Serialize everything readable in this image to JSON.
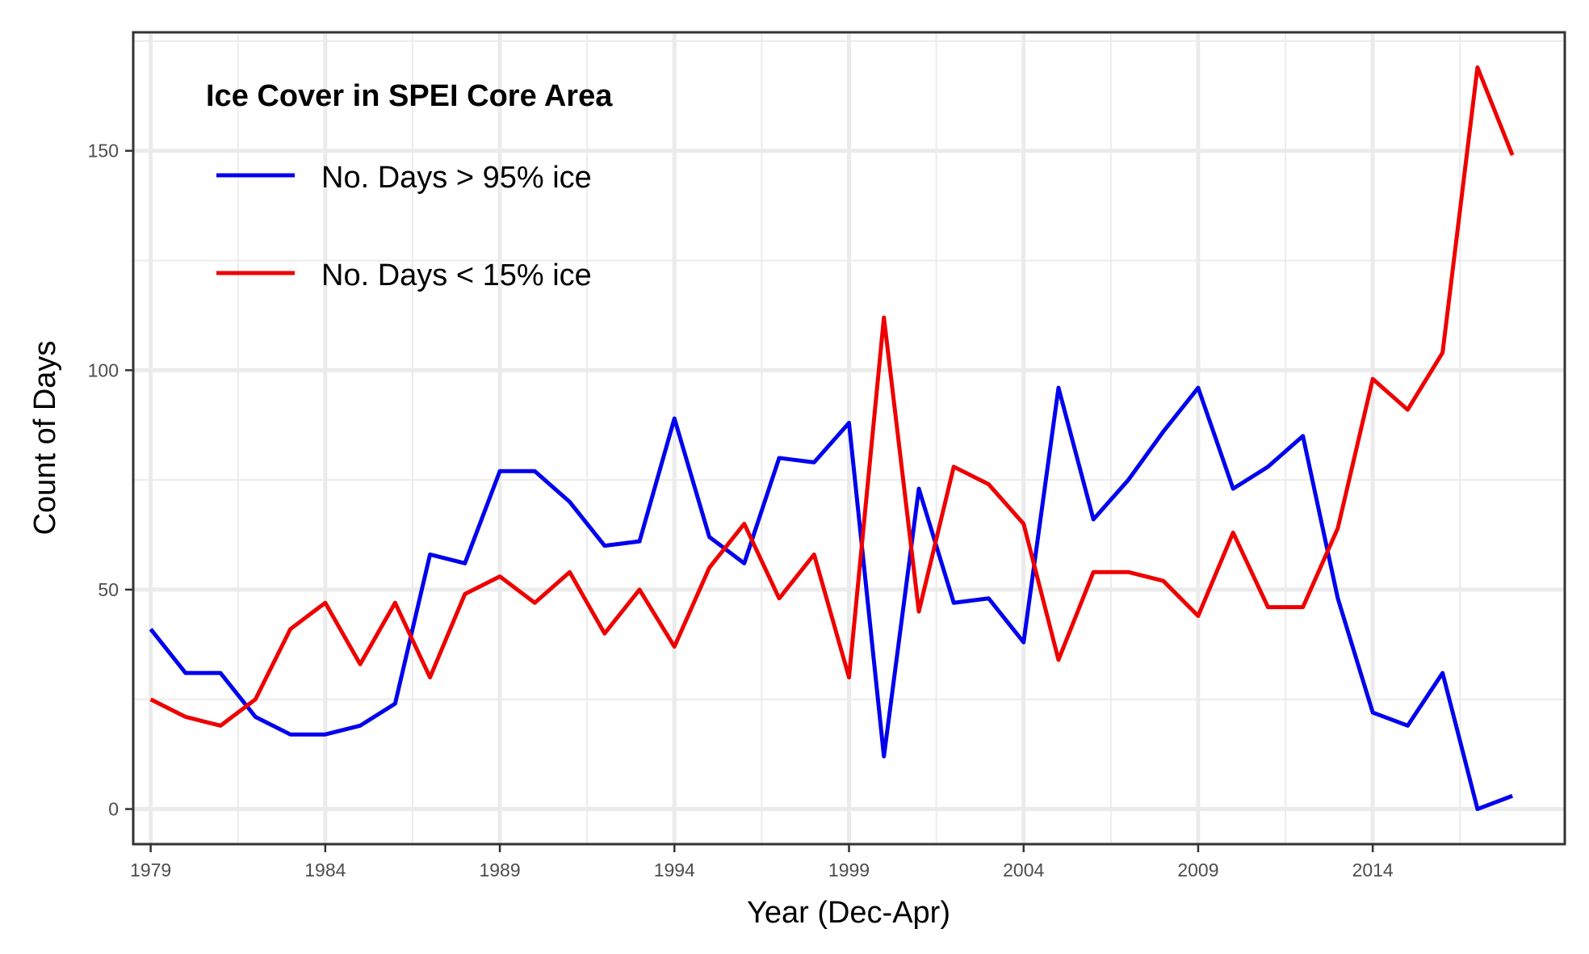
{
  "chart_data": {
    "type": "line",
    "title": "",
    "xlabel": "Year (Dec-Apr)",
    "ylabel": "Count of Days",
    "xlim": [
      1978.5,
      2019.5
    ],
    "ylim": [
      -8,
      177
    ],
    "x_ticks": [
      1979,
      1984,
      1989,
      1994,
      1999,
      2004,
      2009,
      2014
    ],
    "y_ticks": [
      0,
      50,
      100,
      150
    ],
    "grid": true,
    "legend": {
      "title": "Ice Cover in SPEI Core Area",
      "position": "top-left"
    },
    "x": [
      1979,
      1980,
      1981,
      1982,
      1983,
      1984,
      1985,
      1986,
      1987,
      1988,
      1989,
      1990,
      1991,
      1992,
      1993,
      1994,
      1995,
      1996,
      1997,
      1998,
      1999,
      2000,
      2001,
      2002,
      2003,
      2004,
      2005,
      2006,
      2007,
      2008,
      2009,
      2010,
      2011,
      2012,
      2013,
      2014,
      2015,
      2016,
      2017,
      2018
    ],
    "series": [
      {
        "name": "No. Days > 95% ice",
        "color": "#0000ee",
        "values": [
          41,
          31,
          31,
          21,
          17,
          17,
          19,
          24,
          58,
          56,
          77,
          77,
          70,
          60,
          61,
          89,
          62,
          56,
          80,
          79,
          88,
          12,
          73,
          47,
          48,
          38,
          96,
          66,
          75,
          86,
          96,
          73,
          78,
          85,
          48,
          22,
          19,
          31,
          0,
          3
        ]
      },
      {
        "name": "No. Days < 15% ice",
        "color": "#ee0000",
        "values": [
          25,
          21,
          19,
          25,
          41,
          47,
          33,
          47,
          30,
          49,
          53,
          47,
          54,
          40,
          50,
          37,
          55,
          65,
          48,
          58,
          30,
          112,
          45,
          78,
          74,
          65,
          34,
          54,
          54,
          52,
          44,
          63,
          46,
          46,
          64,
          98,
          91,
          104,
          169,
          149
        ]
      }
    ]
  }
}
